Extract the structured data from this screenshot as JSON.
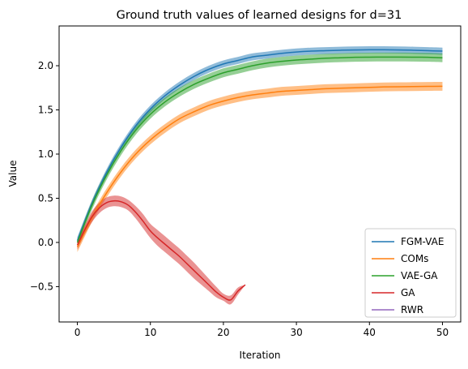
{
  "chart_data": {
    "type": "line",
    "title": "Ground truth values of learned designs for d=31",
    "xlabel": "Iteration",
    "ylabel": "Value",
    "xlim": [
      -2.5,
      52.5
    ],
    "ylim": [
      -0.9,
      2.45
    ],
    "xticks": [
      0,
      10,
      20,
      30,
      40,
      50
    ],
    "xtick_labels": [
      "0",
      "10",
      "20",
      "30",
      "40",
      "50"
    ],
    "yticks": [
      -0.5,
      0.0,
      0.5,
      1.0,
      1.5,
      2.0
    ],
    "ytick_labels": [
      "−0.5",
      "0.0",
      "0.5",
      "1.0",
      "1.5",
      "2.0"
    ],
    "grid": false,
    "legend_position": "lower right",
    "series": [
      {
        "name": "FGM-VAE",
        "color": "#1f77b4",
        "x": [
          0,
          2,
          4,
          6,
          8,
          10,
          12,
          14,
          16,
          18,
          20,
          22,
          24,
          26,
          28,
          30,
          32,
          34,
          36,
          38,
          40,
          42,
          44,
          46,
          48,
          50
        ],
        "y": [
          0.02,
          0.44,
          0.79,
          1.08,
          1.32,
          1.51,
          1.66,
          1.78,
          1.88,
          1.96,
          2.02,
          2.06,
          2.1,
          2.12,
          2.14,
          2.155,
          2.165,
          2.17,
          2.175,
          2.178,
          2.18,
          2.18,
          2.178,
          2.175,
          2.17,
          2.165
        ],
        "lower": [
          -0.02,
          0.4,
          0.75,
          1.04,
          1.28,
          1.47,
          1.62,
          1.74,
          1.84,
          1.92,
          1.98,
          2.02,
          2.06,
          2.08,
          2.1,
          2.115,
          2.125,
          2.13,
          2.135,
          2.138,
          2.14,
          2.14,
          2.138,
          2.135,
          2.13,
          2.125
        ],
        "upper": [
          0.06,
          0.48,
          0.83,
          1.12,
          1.36,
          1.55,
          1.7,
          1.82,
          1.92,
          2.0,
          2.06,
          2.1,
          2.14,
          2.16,
          2.18,
          2.195,
          2.205,
          2.21,
          2.215,
          2.218,
          2.22,
          2.22,
          2.218,
          2.215,
          2.21,
          2.205
        ]
      },
      {
        "name": "COMs",
        "color": "#ff7f0e",
        "x": [
          0,
          2,
          4,
          6,
          8,
          10,
          12,
          14,
          16,
          18,
          20,
          22,
          24,
          26,
          28,
          30,
          32,
          34,
          36,
          38,
          40,
          42,
          44,
          46,
          48,
          50
        ],
        "y": [
          -0.05,
          0.28,
          0.56,
          0.8,
          1.0,
          1.16,
          1.29,
          1.4,
          1.48,
          1.55,
          1.6,
          1.64,
          1.67,
          1.69,
          1.71,
          1.72,
          1.73,
          1.74,
          1.745,
          1.75,
          1.755,
          1.76,
          1.762,
          1.764,
          1.766,
          1.767
        ],
        "lower": [
          -0.11,
          0.23,
          0.51,
          0.75,
          0.95,
          1.11,
          1.24,
          1.35,
          1.43,
          1.5,
          1.55,
          1.59,
          1.62,
          1.64,
          1.66,
          1.67,
          1.68,
          1.69,
          1.695,
          1.7,
          1.705,
          1.71,
          1.712,
          1.714,
          1.716,
          1.717
        ],
        "upper": [
          0.01,
          0.33,
          0.61,
          0.85,
          1.05,
          1.21,
          1.34,
          1.45,
          1.53,
          1.6,
          1.65,
          1.69,
          1.72,
          1.74,
          1.76,
          1.77,
          1.78,
          1.79,
          1.795,
          1.8,
          1.805,
          1.81,
          1.812,
          1.814,
          1.816,
          1.817
        ]
      },
      {
        "name": "VAE-GA",
        "color": "#2ca02c",
        "x": [
          0,
          2,
          4,
          6,
          8,
          10,
          12,
          14,
          16,
          18,
          20,
          22,
          24,
          26,
          28,
          30,
          32,
          34,
          36,
          38,
          40,
          42,
          44,
          46,
          48,
          50
        ],
        "y": [
          0.0,
          0.42,
          0.76,
          1.04,
          1.27,
          1.45,
          1.59,
          1.7,
          1.79,
          1.86,
          1.92,
          1.96,
          2.0,
          2.03,
          2.05,
          2.065,
          2.075,
          2.085,
          2.09,
          2.095,
          2.097,
          2.098,
          2.098,
          2.097,
          2.095,
          2.09
        ],
        "lower": [
          -0.04,
          0.37,
          0.71,
          0.99,
          1.22,
          1.4,
          1.54,
          1.65,
          1.74,
          1.81,
          1.87,
          1.91,
          1.95,
          1.98,
          2.0,
          2.015,
          2.025,
          2.035,
          2.04,
          2.045,
          2.047,
          2.048,
          2.048,
          2.047,
          2.045,
          2.04
        ],
        "upper": [
          0.04,
          0.47,
          0.81,
          1.09,
          1.32,
          1.5,
          1.64,
          1.75,
          1.84,
          1.91,
          1.97,
          2.01,
          2.05,
          2.08,
          2.1,
          2.115,
          2.125,
          2.135,
          2.14,
          2.145,
          2.147,
          2.148,
          2.148,
          2.147,
          2.145,
          2.14
        ]
      },
      {
        "name": "GA",
        "color": "#d62728",
        "x": [
          0,
          1,
          2,
          3,
          4,
          5,
          6,
          7,
          8,
          9,
          10,
          11,
          12,
          13,
          14,
          15,
          16,
          17,
          18,
          19,
          20,
          21,
          22,
          23
        ],
        "y": [
          -0.03,
          0.14,
          0.29,
          0.39,
          0.45,
          0.47,
          0.46,
          0.42,
          0.34,
          0.24,
          0.13,
          0.05,
          -0.02,
          -0.09,
          -0.16,
          -0.24,
          -0.32,
          -0.4,
          -0.48,
          -0.56,
          -0.62,
          -0.65,
          -0.55,
          -0.48
        ],
        "lower": [
          -0.08,
          0.09,
          0.23,
          0.33,
          0.39,
          0.41,
          0.4,
          0.36,
          0.27,
          0.16,
          0.05,
          -0.04,
          -0.11,
          -0.18,
          -0.25,
          -0.33,
          -0.41,
          -0.48,
          -0.55,
          -0.62,
          -0.66,
          -0.7,
          -0.59,
          -0.48
        ],
        "upper": [
          0.02,
          0.19,
          0.35,
          0.45,
          0.51,
          0.53,
          0.52,
          0.48,
          0.41,
          0.32,
          0.21,
          0.14,
          0.07,
          0.0,
          -0.07,
          -0.15,
          -0.23,
          -0.32,
          -0.41,
          -0.5,
          -0.58,
          -0.6,
          -0.51,
          -0.48
        ]
      },
      {
        "name": "RWR",
        "color": "#9467bd",
        "x": [],
        "y": [],
        "lower": [],
        "upper": []
      }
    ]
  }
}
